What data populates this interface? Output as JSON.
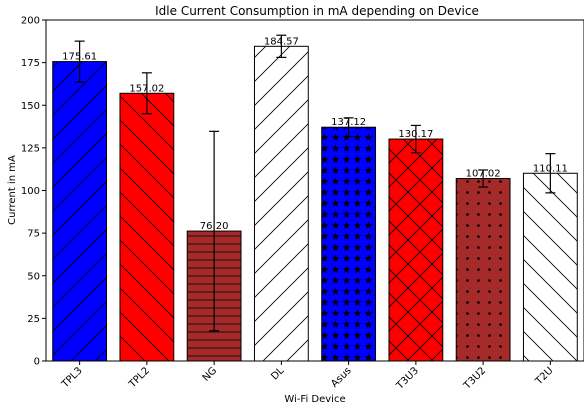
{
  "chart_data": {
    "type": "bar",
    "title": "Idle Current Consumption in mA depending on Device",
    "xlabel": "Wi-Fi Device",
    "ylabel": "Current in mA",
    "ylim": [
      0,
      200
    ],
    "yticks": [
      0,
      25,
      50,
      75,
      100,
      125,
      150,
      175,
      200
    ],
    "grid": false,
    "categories": [
      "TPL3",
      "TPL2",
      "NG",
      "DL",
      "Asus",
      "T3U3",
      "T3U2",
      "T2U"
    ],
    "values": [
      175.61,
      157.02,
      76.2,
      184.57,
      137.12,
      130.17,
      107.02,
      110.11
    ],
    "value_labels": [
      "175.61",
      "157.02",
      "76.20",
      "184.57",
      "137.12",
      "130.17",
      "107.02",
      "110.11"
    ],
    "errors": [
      12,
      12,
      58.5,
      6.5,
      5.5,
      8,
      5,
      11.5
    ],
    "colors": [
      "#0000ff",
      "#ff0000",
      "#a52a2a",
      "#ffffff",
      "#0000ff",
      "#ff0000",
      "#a52a2a",
      "#ffffff"
    ],
    "hatches": [
      "forward-diagonal",
      "backward-diagonal",
      "horizontal",
      "forward-diagonal",
      "stars",
      "crosshatch",
      "dots",
      "backward-diagonal"
    ]
  }
}
